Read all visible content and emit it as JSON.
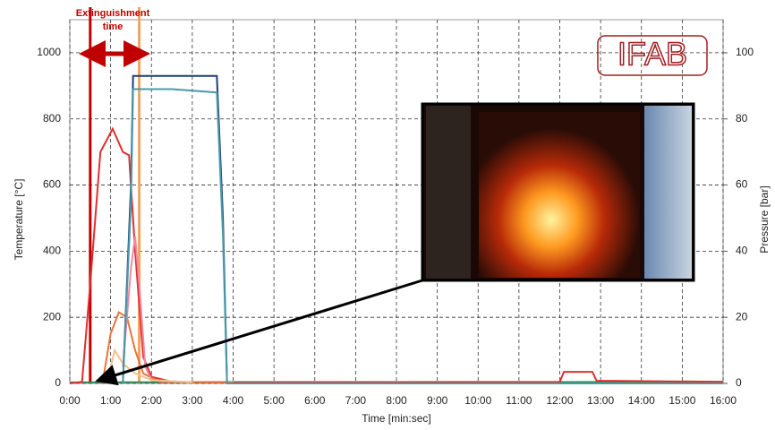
{
  "chart_data": {
    "type": "line",
    "x_label": "Time [min:sec]",
    "y_label": "Temperature [°C]",
    "y2_label": "Pressure [bar]",
    "logo": "IFAB",
    "annotation": [
      "Extinguishment",
      "time"
    ],
    "markers": [
      {
        "value": 0.5,
        "color": "#c00000"
      },
      {
        "value": 1.7,
        "color": "#f4a460"
      }
    ],
    "xlim": [
      0,
      16
    ],
    "xticks": [
      {
        "value": 0,
        "label": "0:00"
      },
      {
        "value": 1,
        "label": "1:00"
      },
      {
        "value": 2,
        "label": "2:00"
      },
      {
        "value": 3,
        "label": "3:00"
      },
      {
        "value": 4,
        "label": "4:00"
      },
      {
        "value": 5,
        "label": "5:00"
      },
      {
        "value": 6,
        "label": "6:00"
      },
      {
        "value": 7,
        "label": "7:00"
      },
      {
        "value": 8,
        "label": "8:00"
      },
      {
        "value": 9,
        "label": "9:00"
      },
      {
        "value": 10,
        "label": "10:00"
      },
      {
        "value": 11,
        "label": "11:00"
      },
      {
        "value": 12,
        "label": "12:00"
      },
      {
        "value": 13,
        "label": "13:00"
      },
      {
        "value": 14,
        "label": "14:00"
      },
      {
        "value": 15,
        "label": "15:00"
      },
      {
        "value": 16,
        "label": "16:00"
      }
    ],
    "ylim": [
      0,
      1100
    ],
    "yticks": [
      0,
      200,
      400,
      600,
      800,
      1000
    ],
    "y2lim": [
      0,
      110
    ],
    "y2ticks": [
      0,
      20,
      40,
      60,
      80,
      100
    ],
    "grid": true,
    "series": [
      {
        "color": "#2e8b57",
        "x": [
          0,
          4,
          8,
          12,
          16
        ],
        "values": [
          3,
          4,
          4,
          4,
          5
        ]
      },
      {
        "color": "#e03030",
        "x": [
          0,
          0.3,
          0.5,
          0.75,
          1.05,
          1.3,
          1.45,
          1.6,
          1.8,
          2.0,
          2.5,
          4,
          12,
          12.1,
          12.8,
          12.9,
          16
        ],
        "values": [
          0,
          5,
          300,
          700,
          770,
          700,
          690,
          400,
          80,
          20,
          5,
          3,
          5,
          35,
          35,
          8,
          5
        ]
      },
      {
        "color": "#e8743b",
        "x": [
          0.8,
          1.0,
          1.2,
          1.4,
          1.6,
          1.8,
          2.2,
          4
        ],
        "values": [
          0,
          150,
          215,
          200,
          100,
          30,
          5,
          3
        ]
      },
      {
        "color": "#f08aa0",
        "x": [
          1.3,
          1.5,
          1.6,
          1.7,
          1.85,
          2.0,
          3
        ],
        "values": [
          50,
          350,
          445,
          300,
          50,
          10,
          3
        ]
      },
      {
        "color": "#f7c08a",
        "x": [
          0.9,
          1.1,
          1.3,
          1.6,
          2.0,
          3
        ],
        "values": [
          0,
          100,
          60,
          30,
          10,
          3
        ]
      },
      {
        "color": "#1f3d7a",
        "axis": "y2",
        "x": [
          1.3,
          1.5,
          1.55,
          2.5,
          3.6,
          3.75,
          3.85,
          16
        ],
        "values": [
          0,
          60,
          93,
          93,
          93,
          50,
          0,
          0
        ]
      },
      {
        "color": "#4a9aa8",
        "axis": "y2",
        "x": [
          1.3,
          1.5,
          1.55,
          2.5,
          3.6,
          3.75,
          3.85,
          16
        ],
        "values": [
          0,
          55,
          89,
          89,
          88,
          45,
          0,
          0
        ]
      }
    ]
  }
}
